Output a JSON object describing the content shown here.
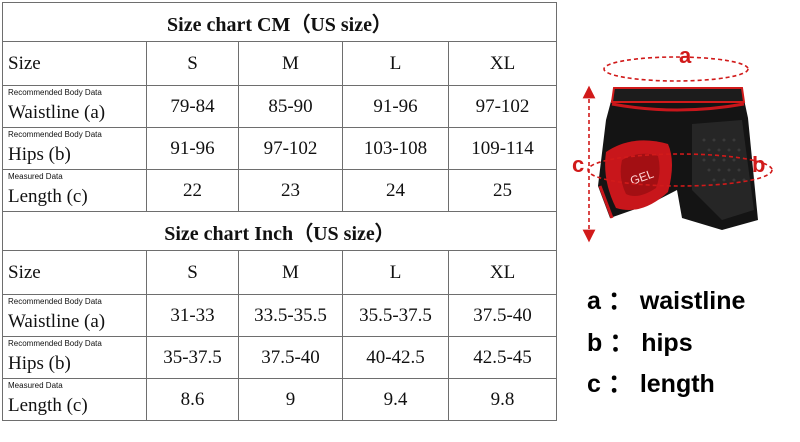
{
  "cm": {
    "title": "Size chart CM（US size）",
    "header": [
      "Size",
      "S",
      "M",
      "L",
      "XL"
    ],
    "rows": [
      {
        "note": "Recommended Body Data",
        "label": "Waistline (a)",
        "values": [
          "79-84",
          "85-90",
          "91-96",
          "97-102"
        ]
      },
      {
        "note": "Recommended Body Data",
        "label": "Hips (b)",
        "values": [
          "91-96",
          "97-102",
          "103-108",
          "109-114"
        ]
      },
      {
        "note": "Measured Data",
        "label": "Length (c)",
        "values": [
          "22",
          "23",
          "24",
          "25"
        ]
      }
    ]
  },
  "inch": {
    "title": "Size chart Inch（US size）",
    "header": [
      "Size",
      "S",
      "M",
      "L",
      "XL"
    ],
    "rows": [
      {
        "note": "Recommended Body Data",
        "label": "Waistline (a)",
        "values": [
          "31-33",
          "33.5-35.5",
          "35.5-37.5",
          "37.5-40"
        ]
      },
      {
        "note": "Recommended Body Data",
        "label": "Hips (b)",
        "values": [
          "35-37.5",
          "37.5-40",
          "40-42.5",
          "42.5-45"
        ]
      },
      {
        "note": "Measured Data",
        "label": "Length (c)",
        "values": [
          "8.6",
          "9",
          "9.4",
          "9.8"
        ]
      }
    ]
  },
  "figure": {
    "markers": [
      "a",
      "b",
      "c"
    ],
    "pad_text": "GEL",
    "colors": {
      "accent": "#d11a1a",
      "shorts": "#141414",
      "pad": "#c8161b"
    }
  },
  "legend": [
    {
      "letter": "a",
      "sep": "：",
      "text": "waistline"
    },
    {
      "letter": "b",
      "sep": "：",
      "text": "hips"
    },
    {
      "letter": "c",
      "sep": "：",
      "text": "length"
    }
  ]
}
